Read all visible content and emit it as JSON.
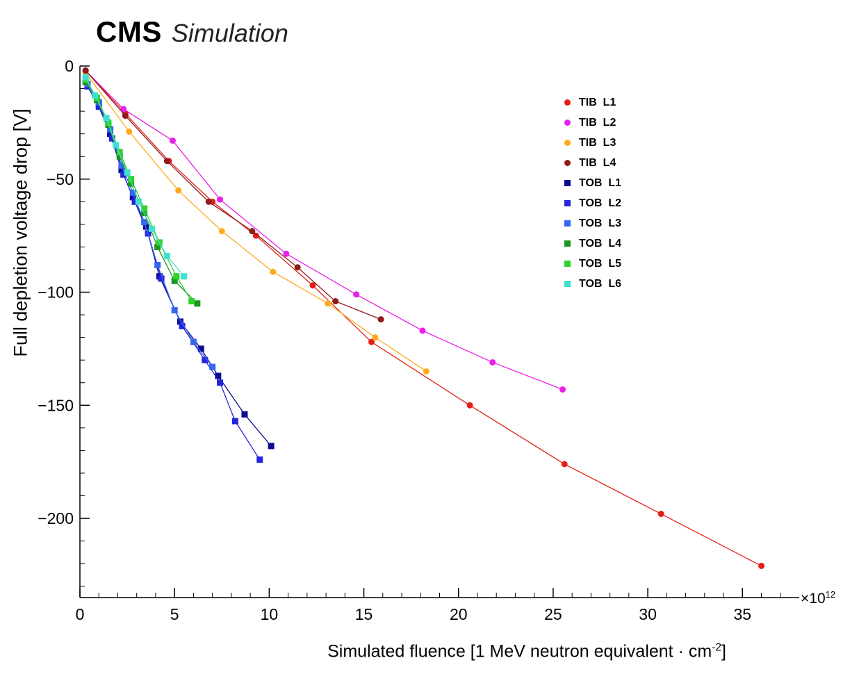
{
  "title": {
    "experiment": "CMS",
    "label": "Simulation"
  },
  "axes": {
    "x": {
      "label_pre": "Simulated fluence [1 MeV neutron equivalent · cm",
      "label_sup": "-2",
      "label_post": "]",
      "exponent": "×10",
      "exponent_sup": "12",
      "major_ticks": [
        0,
        5,
        10,
        15,
        20,
        25,
        30,
        35
      ],
      "tick_labels": [
        "0",
        "5",
        "10",
        "15",
        "20",
        "25",
        "30",
        "35"
      ],
      "minor_step": 1
    },
    "y": {
      "label": "Full depletion voltage drop [V]",
      "major_ticks": [
        0,
        -50,
        -100,
        -150,
        -200
      ],
      "tick_labels": [
        "0",
        "−50",
        "−100",
        "−150",
        "−200"
      ],
      "minor_step": 10
    }
  },
  "chart_data": {
    "type": "line",
    "title": "CMS Simulation",
    "xlabel": "Simulated fluence [1 MeV neutron equivalent · cm⁻²] ×10¹²",
    "ylabel": "Full depletion voltage drop [V]",
    "xlim": [
      0,
      38
    ],
    "ylim": [
      -235,
      0
    ],
    "grid": false,
    "legend_position": "top-right",
    "series": [
      {
        "name": "TIB  L1",
        "color": "#e32016",
        "marker": "circle",
        "x": [
          0.3,
          2.4,
          4.7,
          7.0,
          9.3,
          12.3,
          15.4,
          20.6,
          25.6,
          30.7,
          36.0
        ],
        "y": [
          -2,
          -21,
          -42,
          -60,
          -75,
          -97,
          -122,
          -150,
          -176,
          -198,
          -221
        ]
      },
      {
        "name": "TIB  L2",
        "color": "#ea1fea",
        "marker": "circle",
        "x": [
          0.3,
          2.3,
          4.9,
          7.4,
          10.9,
          14.6,
          18.1,
          21.8,
          25.5
        ],
        "y": [
          -2,
          -19,
          -33,
          -59,
          -83,
          -101,
          -117,
          -131,
          -143
        ]
      },
      {
        "name": "TIB  L3",
        "color": "#ffaa1c",
        "marker": "circle",
        "x": [
          0.3,
          2.6,
          5.2,
          7.5,
          10.2,
          13.1,
          15.6,
          18.3
        ],
        "y": [
          -3,
          -29,
          -55,
          -73,
          -91,
          -105,
          -120,
          -135
        ]
      },
      {
        "name": "TIB  L4",
        "color": "#8f1a1a",
        "marker": "circle",
        "x": [
          0.3,
          2.4,
          4.6,
          6.8,
          9.1,
          11.5,
          13.5,
          15.9
        ],
        "y": [
          -2,
          -22,
          -42,
          -60,
          -73,
          -89,
          -104,
          -112
        ]
      },
      {
        "name": "TOB  L1",
        "color": "#0b0b8f",
        "marker": "square",
        "x": [
          0.4,
          1.0,
          1.6,
          2.2,
          2.8,
          3.5,
          4.2,
          5.3,
          6.4,
          7.3,
          8.7,
          10.1
        ],
        "y": [
          -8,
          -17,
          -30,
          -46,
          -58,
          -71,
          -93,
          -113,
          -125,
          -137,
          -154,
          -168
        ]
      },
      {
        "name": "TOB  L2",
        "color": "#2424dd",
        "marker": "square",
        "x": [
          0.4,
          1.0,
          1.7,
          2.3,
          2.9,
          3.6,
          4.3,
          5.4,
          6.6,
          7.4,
          8.2,
          9.5
        ],
        "y": [
          -9,
          -18,
          -32,
          -48,
          -60,
          -74,
          -94,
          -115,
          -130,
          -140,
          -157,
          -174
        ]
      },
      {
        "name": "TOB  L3",
        "color": "#3566f0",
        "marker": "square",
        "x": [
          0.4,
          1.0,
          1.6,
          2.2,
          2.8,
          3.4,
          4.1,
          5.0,
          6.0,
          7.0
        ],
        "y": [
          -8,
          -16,
          -28,
          -44,
          -56,
          -69,
          -88,
          -108,
          -122,
          -133
        ]
      },
      {
        "name": "TOB  L4",
        "color": "#1f941f",
        "marker": "square",
        "x": [
          0.3,
          0.9,
          1.5,
          2.1,
          2.7,
          3.4,
          4.1,
          5.0,
          6.2
        ],
        "y": [
          -7,
          -15,
          -26,
          -40,
          -52,
          -65,
          -80,
          -95,
          -105
        ]
      },
      {
        "name": "TOB  L5",
        "color": "#2fd12f",
        "marker": "square",
        "x": [
          0.3,
          0.9,
          1.5,
          2.1,
          2.7,
          3.4,
          4.2,
          5.1,
          5.9
        ],
        "y": [
          -6,
          -14,
          -25,
          -38,
          -50,
          -63,
          -78,
          -93,
          -104
        ]
      },
      {
        "name": "TOB  L6",
        "color": "#3fe0cf",
        "marker": "square",
        "x": [
          0.3,
          0.8,
          1.4,
          1.9,
          2.5,
          3.1,
          3.8,
          4.6,
          5.5
        ],
        "y": [
          -5,
          -13,
          -23,
          -35,
          -47,
          -60,
          -72,
          -84,
          -93
        ]
      }
    ]
  }
}
